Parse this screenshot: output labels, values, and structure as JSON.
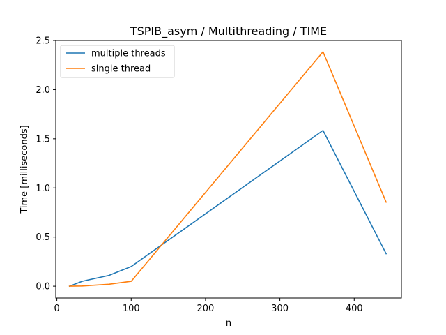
{
  "chart_data": {
    "type": "line",
    "title": "TSPIB_asym / Multithreading / TIME",
    "xlabel": "n",
    "ylabel": "Time [milliseconds]",
    "xlim": [
      -1.5,
      463.5
    ],
    "ylim": [
      -0.12,
      2.5
    ],
    "xticks": [
      0,
      100,
      200,
      300,
      400
    ],
    "yticks": [
      0.0,
      0.5,
      1.0,
      1.5,
      2.0,
      2.5
    ],
    "ytick_labels": [
      "0.0",
      "0.5",
      "1.0",
      "1.5",
      "2.0",
      "2.5"
    ],
    "legend_position": "upper-left",
    "grid": false,
    "series": [
      {
        "name": "multiple threads",
        "color": "#1f77b4",
        "x": [
          17,
          34,
          70,
          100,
          358,
          443
        ],
        "y": [
          0.0,
          0.05,
          0.11,
          0.2,
          1.585,
          0.33
        ]
      },
      {
        "name": "single thread",
        "color": "#ff7f0e",
        "x": [
          17,
          34,
          70,
          100,
          358,
          443
        ],
        "y": [
          0.0,
          0.002,
          0.02,
          0.05,
          2.385,
          0.855
        ]
      }
    ]
  }
}
